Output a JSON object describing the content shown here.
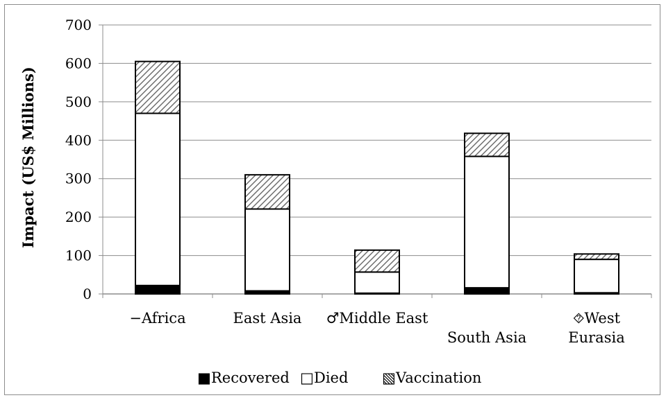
{
  "chart_data": {
    "type": "bar",
    "stacked": true,
    "categories": [
      [
        "−Africa"
      ],
      [
        "East Asia"
      ],
      [
        "♂Middle East"
      ],
      [
        "",
        "South Asia"
      ],
      [
        "⯑West",
        "Eurasia"
      ]
    ],
    "series": [
      {
        "name": "Recovered",
        "values": [
          22,
          8,
          2,
          16,
          3
        ],
        "color": "#000000",
        "pattern": "solid"
      },
      {
        "name": "Died",
        "values": [
          448,
          213,
          55,
          342,
          87
        ],
        "color": "#ffffff",
        "pattern": "none"
      },
      {
        "name": "Vaccination",
        "values": [
          135,
          89,
          57,
          60,
          14
        ],
        "color": "#ffffff",
        "pattern": "diagonal-hatch"
      }
    ],
    "title": "",
    "xlabel": "",
    "ylabel": "Impact (US$ Millions)",
    "ylim": [
      0,
      700
    ],
    "yticks": [
      "0",
      "100",
      "200",
      "300",
      "400",
      "500",
      "600",
      "700"
    ],
    "grid": true,
    "legend_position": "bottom",
    "legend_glyphs": [
      "■",
      "□",
      "▧"
    ]
  }
}
